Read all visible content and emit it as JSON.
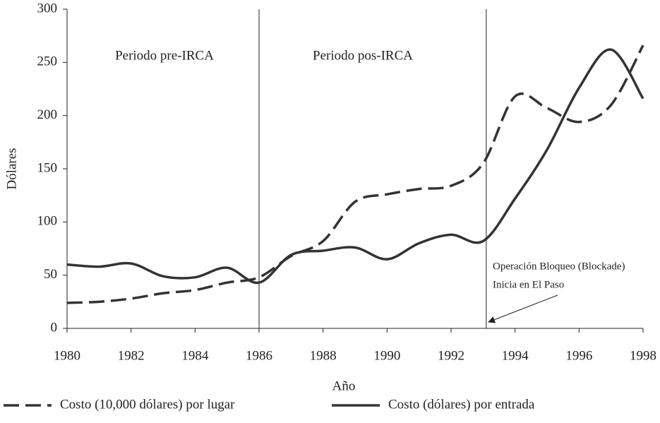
{
  "chart_data": {
    "type": "line",
    "xlabel": "Año",
    "ylabel": "Dólares",
    "x": [
      1980,
      1981,
      1982,
      1983,
      1984,
      1985,
      1986,
      1987,
      1988,
      1989,
      1990,
      1991,
      1992,
      1993,
      1994,
      1995,
      1996,
      1997,
      1998
    ],
    "series": [
      {
        "name": "Costo (10,000 dólares) por lugar",
        "color": "#333333",
        "dash": true,
        "values": [
          24,
          25,
          28,
          33,
          36,
          43,
          48,
          68,
          82,
          119,
          126,
          131,
          134,
          155,
          218,
          207,
          194,
          210,
          266
        ]
      },
      {
        "name": "Costo (dólares) por entrada",
        "color": "#333333",
        "dash": false,
        "values": [
          60,
          58,
          61,
          49,
          48,
          57,
          43,
          69,
          73,
          76,
          65,
          80,
          88,
          82,
          122,
          168,
          226,
          262,
          216
        ]
      }
    ],
    "xlim": [
      1980,
      1998
    ],
    "xticks": [
      1980,
      1982,
      1984,
      1986,
      1988,
      1990,
      1992,
      1994,
      1996,
      1998
    ],
    "ylim": [
      0,
      300
    ],
    "yticks": [
      0,
      50,
      100,
      150,
      200,
      250,
      300
    ],
    "vlines": [
      1986,
      1993.1
    ],
    "annotations": [
      "Periodo pre-IRCA",
      "Periodo pos-IRCA",
      "Operación Bloqueo (Blockade)",
      "Inicia en El Paso"
    ]
  }
}
